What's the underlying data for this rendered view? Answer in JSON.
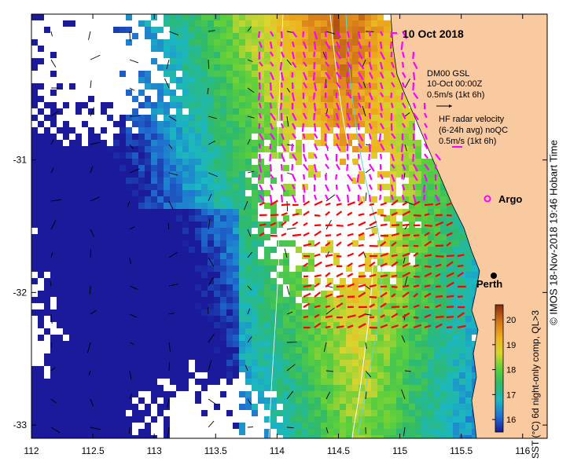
{
  "title": "10 Oct 2018",
  "model_legend": {
    "line1": "DM00 GSL",
    "line2": "10-Oct 00:00Z",
    "line3": "0.5m/s (1kt 6h)"
  },
  "radar_legend": {
    "line1": "HF radar velocity",
    "line2": "(6-24h avg) noQC",
    "line3": "0.5m/s (1kt 6h)"
  },
  "argo_label": "Argo",
  "city_label": "Perth",
  "colorbar": {
    "label": "SST (°C) 6d night-only comp, QL>3",
    "ticks": [
      "16",
      "17",
      "18",
      "19",
      "20"
    ],
    "min": 15.5,
    "max": 20.6
  },
  "credit": "© IMOS 18-Nov-2018 19:46 Hobart Time",
  "axes": {
    "x_ticks": [
      "112",
      "112.5",
      "113",
      "113.5",
      "114",
      "114.5",
      "115",
      "115.5",
      "116"
    ],
    "y_ticks": [
      "-31",
      "-32",
      "-33"
    ],
    "xlim": [
      112,
      116.2
    ],
    "ylim": [
      -33.1,
      -29.9
    ]
  },
  "colors": {
    "land": "#f9c9a0",
    "model_arrows": "#000000",
    "radar_arrows_far": "#ff00ff",
    "radar_arrows_near": "#ff0000",
    "argo": "#ff00ff"
  }
}
